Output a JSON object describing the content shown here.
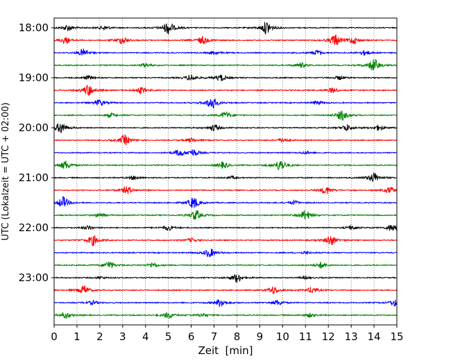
{
  "chart_data": {
    "type": "line",
    "title": "",
    "xlabel": "Zeit  [min]",
    "ylabel": "UTC (Lokalzeit = UTC + 02:00)",
    "xlim": [
      0,
      15
    ],
    "x_ticks": [
      0,
      1,
      2,
      3,
      4,
      5,
      6,
      7,
      8,
      9,
      10,
      11,
      12,
      13,
      14,
      15
    ],
    "x_tick_labels": [
      "0",
      "1",
      "2",
      "3",
      "4",
      "5",
      "6",
      "7",
      "8",
      "9",
      "10",
      "11",
      "12",
      "13",
      "14",
      "15"
    ],
    "y_tick_labels": [
      "18:00",
      "19:00",
      "20:00",
      "21:00",
      "22:00",
      "23:00"
    ],
    "grid": "vertical-dotted",
    "trace_colors": [
      "#000000",
      "#ff0000",
      "#0000ff",
      "#008000"
    ],
    "series": [
      {
        "start": "18:00",
        "events": [
          [
            0.6,
            0.5
          ],
          [
            2.2,
            0.3
          ],
          [
            5.0,
            1.0
          ],
          [
            9.3,
            1.0
          ]
        ]
      },
      {
        "start": "18:15",
        "events": [
          [
            0.5,
            0.5
          ],
          [
            3.0,
            0.6
          ],
          [
            6.5,
            0.6
          ],
          [
            12.3,
            0.9
          ],
          [
            13.1,
            0.5
          ]
        ]
      },
      {
        "start": "18:30",
        "events": [
          [
            1.3,
            0.6
          ],
          [
            7.0,
            0.3
          ],
          [
            11.5,
            0.4
          ],
          [
            13.6,
            0.4
          ]
        ]
      },
      {
        "start": "18:45",
        "events": [
          [
            4.0,
            0.3
          ],
          [
            10.8,
            0.4
          ],
          [
            14.0,
            1.0
          ]
        ]
      },
      {
        "start": "19:00",
        "events": [
          [
            1.5,
            0.3
          ],
          [
            6.0,
            0.5
          ],
          [
            7.3,
            0.5
          ],
          [
            12.5,
            0.3
          ]
        ]
      },
      {
        "start": "19:15",
        "events": [
          [
            1.5,
            0.9
          ],
          [
            3.8,
            0.5
          ],
          [
            12.2,
            0.4
          ]
        ]
      },
      {
        "start": "19:30",
        "events": [
          [
            2.0,
            0.5
          ],
          [
            6.9,
            1.0
          ],
          [
            11.5,
            0.3
          ]
        ]
      },
      {
        "start": "19:45",
        "events": [
          [
            2.5,
            0.3
          ],
          [
            7.5,
            0.5
          ],
          [
            12.6,
            0.8
          ]
        ]
      },
      {
        "start": "20:00",
        "events": [
          [
            0.3,
            0.9
          ],
          [
            7.0,
            0.5
          ],
          [
            12.8,
            0.5
          ],
          [
            14.2,
            0.4
          ]
        ]
      },
      {
        "start": "20:15",
        "events": [
          [
            3.1,
            0.8
          ],
          [
            6.0,
            0.3
          ],
          [
            10.0,
            0.3
          ]
        ]
      },
      {
        "start": "20:30",
        "events": [
          [
            5.5,
            0.5
          ],
          [
            6.1,
            0.5
          ],
          [
            11.0,
            0.2
          ]
        ]
      },
      {
        "start": "20:45",
        "events": [
          [
            0.5,
            0.7
          ],
          [
            7.4,
            0.5
          ],
          [
            9.9,
            0.9
          ]
        ]
      },
      {
        "start": "21:00",
        "events": [
          [
            3.5,
            0.3
          ],
          [
            7.8,
            0.2
          ],
          [
            14.0,
            0.8
          ]
        ]
      },
      {
        "start": "21:15",
        "events": [
          [
            3.2,
            0.6
          ],
          [
            11.9,
            0.6
          ],
          [
            14.7,
            0.5
          ]
        ]
      },
      {
        "start": "21:30",
        "events": [
          [
            0.4,
            0.9
          ],
          [
            6.1,
            0.9
          ],
          [
            10.5,
            0.3
          ]
        ]
      },
      {
        "start": "21:45",
        "events": [
          [
            2.0,
            0.3
          ],
          [
            6.2,
            0.8
          ],
          [
            11.0,
            0.8
          ]
        ]
      },
      {
        "start": "22:00",
        "events": [
          [
            1.5,
            0.3
          ],
          [
            5.0,
            0.4
          ],
          [
            13.0,
            0.3
          ],
          [
            14.8,
            0.6
          ]
        ]
      },
      {
        "start": "22:15",
        "events": [
          [
            1.7,
            0.8
          ],
          [
            6.0,
            0.3
          ],
          [
            12.1,
            0.8
          ]
        ]
      },
      {
        "start": "22:30",
        "events": [
          [
            6.8,
            0.7
          ],
          [
            11.0,
            0.2
          ]
        ]
      },
      {
        "start": "22:45",
        "events": [
          [
            2.4,
            0.6
          ],
          [
            4.3,
            0.4
          ],
          [
            11.7,
            0.5
          ]
        ]
      },
      {
        "start": "23:00",
        "events": [
          [
            2.0,
            0.2
          ],
          [
            8.0,
            0.7
          ],
          [
            11.0,
            0.2
          ]
        ]
      },
      {
        "start": "23:15",
        "events": [
          [
            1.3,
            0.7
          ],
          [
            9.6,
            0.6
          ],
          [
            11.3,
            0.5
          ]
        ]
      },
      {
        "start": "23:30",
        "events": [
          [
            1.7,
            0.3
          ],
          [
            7.3,
            0.7
          ],
          [
            9.8,
            0.4
          ],
          [
            14.9,
            0.5
          ]
        ]
      },
      {
        "start": "23:45",
        "events": [
          [
            0.5,
            0.5
          ],
          [
            5.0,
            0.5
          ],
          [
            6.5,
            0.3
          ],
          [
            11.2,
            0.3
          ]
        ]
      }
    ]
  }
}
